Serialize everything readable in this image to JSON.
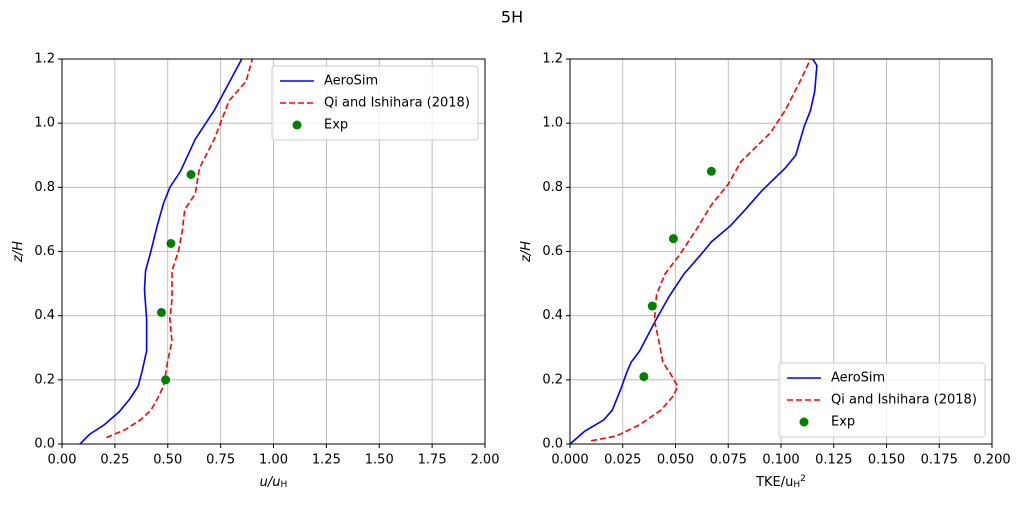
{
  "title": "5H",
  "chart_data": [
    {
      "type": "line",
      "xlabel": [
        {
          "text": "u/u"
        },
        {
          "text": "H",
          "sub": true
        }
      ],
      "ylabel": [
        {
          "text": "z/H"
        }
      ],
      "xlim": [
        0,
        2
      ],
      "ylim": [
        0,
        1.2
      ],
      "xticks": [
        {
          "value": 0,
          "label": "0.00"
        },
        0.25,
        {
          "value": 0.5,
          "label": "0.50"
        },
        0.75,
        {
          "value": 1,
          "label": "1.00"
        },
        1.25,
        {
          "value": 1.5,
          "label": "1.50"
        },
        1.75,
        {
          "value": 2,
          "label": "2.00"
        }
      ],
      "yticks": [
        {
          "value": 0,
          "label": "0.0"
        },
        0.2,
        0.4,
        0.6,
        0.8,
        {
          "value": 1,
          "label": "1.0"
        },
        1.2
      ],
      "grid": true,
      "legend": "upper right",
      "series": [
        {
          "name": "AeroSim",
          "color": "#0000ff",
          "style": "solid",
          "x": [
            0.085,
            0.13,
            0.2,
            0.27,
            0.32,
            0.36,
            0.38,
            0.4,
            0.4,
            0.39,
            0.395,
            0.42,
            0.45,
            0.48,
            0.51,
            0.56,
            0.63,
            0.72,
            0.85
          ],
          "values": [
            0,
            0.03,
            0.06,
            0.1,
            0.14,
            0.18,
            0.23,
            0.29,
            0.39,
            0.48,
            0.54,
            0.6,
            0.68,
            0.75,
            0.8,
            0.85,
            0.95,
            1.04,
            1.2
          ]
        },
        {
          "name": "Qi and Ishihara (2018)",
          "color": "#ff0000",
          "style": "dashed",
          "x": [
            0.21,
            0.3,
            0.37,
            0.42,
            0.45,
            0.48,
            0.5,
            0.52,
            0.51,
            0.52,
            0.52,
            0.55,
            0.57,
            0.58,
            0.63,
            0.65,
            0.72,
            0.79,
            0.87,
            0.9
          ],
          "values": [
            0.02,
            0.045,
            0.075,
            0.105,
            0.14,
            0.18,
            0.26,
            0.32,
            0.39,
            0.45,
            0.54,
            0.6,
            0.67,
            0.73,
            0.78,
            0.86,
            0.95,
            1.07,
            1.13,
            1.2
          ]
        },
        {
          "name": "Exp",
          "color": "#008000",
          "style": "markers",
          "x": [
            0.61,
            0.515,
            0.47,
            0.49
          ],
          "values": [
            0.84,
            0.625,
            0.41,
            0.2
          ]
        }
      ]
    },
    {
      "type": "line",
      "xlabel": [
        {
          "text": "TKE/u"
        },
        {
          "text": "H",
          "sub": true
        },
        {
          "text": "2",
          "sup": true
        }
      ],
      "ylabel": [
        {
          "text": "z/H"
        }
      ],
      "xlim": [
        0,
        0.2
      ],
      "ylim": [
        0,
        1.2
      ],
      "xticks": [
        {
          "value": 0,
          "label": "0.000"
        },
        0.025,
        {
          "value": 0.05,
          "label": "0.050"
        },
        0.075,
        {
          "value": 0.1,
          "label": "0.100"
        },
        0.125,
        {
          "value": 0.15,
          "label": "0.150"
        },
        0.175,
        {
          "value": 0.2,
          "label": "0.200"
        }
      ],
      "yticks": [
        {
          "value": 0,
          "label": "0.0"
        },
        0.2,
        0.4,
        0.6,
        0.8,
        {
          "value": 1,
          "label": "1.0"
        },
        1.2
      ],
      "grid": true,
      "legend": "lower right",
      "series": [
        {
          "name": "AeroSim",
          "color": "#0000ff",
          "style": "solid",
          "x": [
            0,
            0.007,
            0.016,
            0.02,
            0.024,
            0.027,
            0.029,
            0.033,
            0.037,
            0.041,
            0.047,
            0.054,
            0.062,
            0.067,
            0.076,
            0.083,
            0.091,
            0.102,
            0.107,
            0.111,
            0.114,
            0.116,
            0.117,
            0.115
          ],
          "values": [
            0,
            0.04,
            0.075,
            0.105,
            0.17,
            0.225,
            0.255,
            0.29,
            0.34,
            0.39,
            0.46,
            0.53,
            0.59,
            0.63,
            0.68,
            0.73,
            0.79,
            0.86,
            0.9,
            0.99,
            1.04,
            1.1,
            1.18,
            1.2
          ]
        },
        {
          "name": "Qi and Ishihara (2018)",
          "color": "#ff0000",
          "style": "dashed",
          "x": [
            0.01,
            0.022,
            0.033,
            0.043,
            0.049,
            0.051,
            0.048,
            0.044,
            0.042,
            0.04,
            0.041,
            0.045,
            0.052,
            0.06,
            0.067,
            0.075,
            0.081,
            0.095,
            0.102,
            0.109,
            0.114
          ],
          "values": [
            0.01,
            0.025,
            0.06,
            0.105,
            0.15,
            0.18,
            0.215,
            0.255,
            0.325,
            0.385,
            0.465,
            0.53,
            0.59,
            0.67,
            0.745,
            0.81,
            0.88,
            0.97,
            1.04,
            1.13,
            1.2
          ]
        },
        {
          "name": "Exp",
          "color": "#008000",
          "style": "markers",
          "x": [
            0.067,
            0.049,
            0.039,
            0.035
          ],
          "values": [
            0.85,
            0.64,
            0.43,
            0.21
          ]
        }
      ]
    }
  ]
}
